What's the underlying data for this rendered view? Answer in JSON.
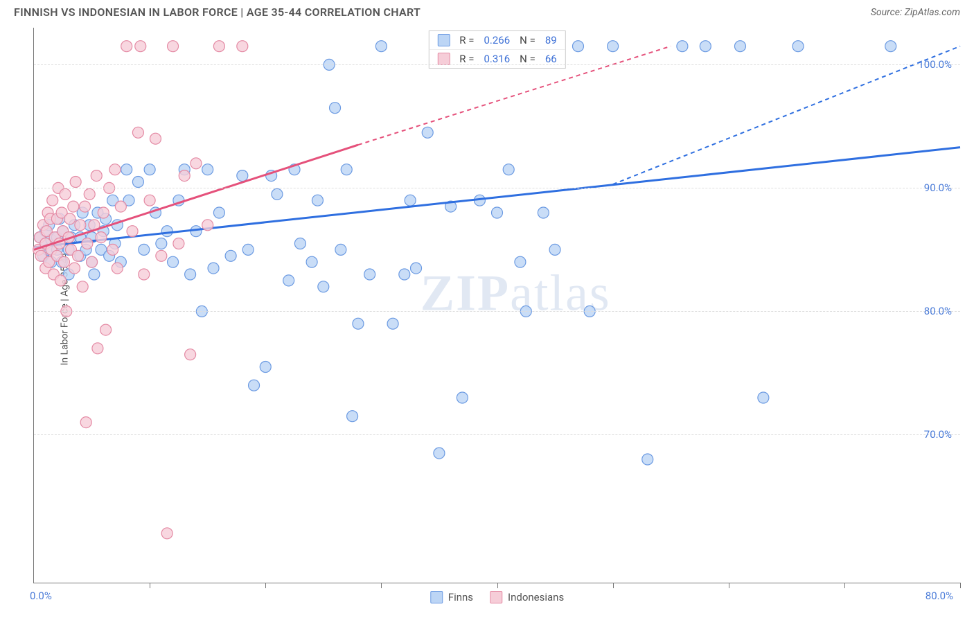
{
  "title": "FINNISH VS INDONESIAN IN LABOR FORCE | AGE 35-44 CORRELATION CHART",
  "source": "Source: ZipAtlas.com",
  "ylabel": "In Labor Force | Age 35-44",
  "watermark_a": "ZIP",
  "watermark_b": "atlas",
  "chart": {
    "type": "scatter",
    "background_color": "#ffffff",
    "grid_color": "#dddddd",
    "axis_color": "#777777",
    "tick_label_color": "#4a7bd8",
    "xlim": [
      0,
      80
    ],
    "ylim": [
      58,
      103
    ],
    "xtick_positions": [
      10,
      20,
      30,
      40,
      50,
      60,
      70,
      80
    ],
    "ytick_positions": [
      70,
      80,
      90,
      100
    ],
    "ytick_labels": [
      "70.0%",
      "80.0%",
      "90.0%",
      "100.0%"
    ],
    "x_origin_label": "0.0%",
    "x_max_label": "80.0%",
    "marker_radius": 8,
    "marker_stroke_width": 1.2,
    "trend_line_width": 3,
    "trend_dash": "6,5",
    "series": [
      {
        "name": "Finns",
        "fill": "#bcd5f5",
        "stroke": "#6b9ae2",
        "trend_color": "#2f6fe0",
        "R": "0.266",
        "N": "89",
        "trend_solid": {
          "x1": 0,
          "y1": 85.2,
          "x2": 80,
          "y2": 93.3
        },
        "trend_dash": {
          "x1": 50,
          "y1": 90.3,
          "x2": 80,
          "y2": 101.5
        },
        "points": [
          [
            0.5,
            86
          ],
          [
            0.8,
            84.5
          ],
          [
            1,
            85.5
          ],
          [
            1,
            86.5
          ],
          [
            1.2,
            85
          ],
          [
            1.3,
            87
          ],
          [
            1.5,
            85.8
          ],
          [
            1.5,
            84
          ],
          [
            2,
            85
          ],
          [
            2,
            86
          ],
          [
            2.2,
            87.5
          ],
          [
            2.4,
            84
          ],
          [
            2.5,
            86.5
          ],
          [
            3,
            83
          ],
          [
            3,
            85
          ],
          [
            3.2,
            86
          ],
          [
            3.5,
            87
          ],
          [
            4,
            84.5
          ],
          [
            4,
            86
          ],
          [
            4.2,
            88
          ],
          [
            4.5,
            85
          ],
          [
            4.8,
            87
          ],
          [
            5,
            84
          ],
          [
            5,
            86
          ],
          [
            5.2,
            83
          ],
          [
            5.5,
            88
          ],
          [
            5.8,
            85
          ],
          [
            6,
            86.5
          ],
          [
            6.2,
            87.5
          ],
          [
            6.5,
            84.5
          ],
          [
            6.8,
            89
          ],
          [
            7,
            85.5
          ],
          [
            7.2,
            87
          ],
          [
            7.5,
            84
          ],
          [
            8,
            91.5
          ],
          [
            8.2,
            89
          ],
          [
            9,
            90.5
          ],
          [
            9.5,
            85
          ],
          [
            10,
            91.5
          ],
          [
            10.5,
            88
          ],
          [
            11,
            85.5
          ],
          [
            11.5,
            86.5
          ],
          [
            12,
            84
          ],
          [
            12.5,
            89
          ],
          [
            13,
            91.5
          ],
          [
            13.5,
            83
          ],
          [
            14,
            86.5
          ],
          [
            14.5,
            80
          ],
          [
            15,
            91.5
          ],
          [
            15.5,
            83.5
          ],
          [
            16,
            88
          ],
          [
            17,
            84.5
          ],
          [
            18,
            91
          ],
          [
            18.5,
            85
          ],
          [
            19,
            74
          ],
          [
            20,
            75.5
          ],
          [
            20.5,
            91
          ],
          [
            21,
            89.5
          ],
          [
            22,
            82.5
          ],
          [
            22.5,
            91.5
          ],
          [
            23,
            85.5
          ],
          [
            24,
            84
          ],
          [
            24.5,
            89
          ],
          [
            25,
            82
          ],
          [
            25.5,
            100
          ],
          [
            26,
            96.5
          ],
          [
            26.5,
            85
          ],
          [
            27,
            91.5
          ],
          [
            27.5,
            71.5
          ],
          [
            28,
            79
          ],
          [
            29,
            83
          ],
          [
            30,
            101.5
          ],
          [
            31,
            79
          ],
          [
            32,
            83
          ],
          [
            32.5,
            89
          ],
          [
            33,
            83.5
          ],
          [
            34,
            94.5
          ],
          [
            35,
            68.5
          ],
          [
            36,
            88.5
          ],
          [
            37,
            73
          ],
          [
            38,
            101.5
          ],
          [
            38.5,
            89
          ],
          [
            40,
            88
          ],
          [
            41,
            91.5
          ],
          [
            42,
            84
          ],
          [
            42.5,
            80
          ],
          [
            43,
            101.5
          ],
          [
            44,
            88
          ],
          [
            45,
            85
          ],
          [
            47,
            101.5
          ],
          [
            48,
            80
          ],
          [
            50,
            101.5
          ],
          [
            53,
            68
          ],
          [
            56,
            101.5
          ],
          [
            58,
            101.5
          ],
          [
            61,
            101.5
          ],
          [
            63,
            73
          ],
          [
            66,
            101.5
          ],
          [
            74,
            101.5
          ]
        ]
      },
      {
        "name": "Indonesians",
        "fill": "#f6cdd8",
        "stroke": "#e48aa4",
        "trend_color": "#e5517b",
        "R": "0.316",
        "N": "66",
        "trend_solid": {
          "x1": 0,
          "y1": 85.0,
          "x2": 28,
          "y2": 93.5
        },
        "trend_dash": {
          "x1": 28,
          "y2": 101.5,
          "x2": 55,
          "y1": 93.5
        },
        "points": [
          [
            0.4,
            85
          ],
          [
            0.5,
            86
          ],
          [
            0.6,
            84.5
          ],
          [
            0.8,
            87
          ],
          [
            1,
            85.5
          ],
          [
            1,
            83.5
          ],
          [
            1.1,
            86.5
          ],
          [
            1.2,
            88
          ],
          [
            1.3,
            84
          ],
          [
            1.4,
            87.5
          ],
          [
            1.5,
            85
          ],
          [
            1.6,
            89
          ],
          [
            1.7,
            83
          ],
          [
            1.8,
            86
          ],
          [
            2,
            87.5
          ],
          [
            2,
            84.5
          ],
          [
            2.1,
            90
          ],
          [
            2.2,
            85.5
          ],
          [
            2.3,
            82.5
          ],
          [
            2.4,
            88
          ],
          [
            2.5,
            86.5
          ],
          [
            2.6,
            84
          ],
          [
            2.7,
            89.5
          ],
          [
            2.8,
            80
          ],
          [
            3,
            86
          ],
          [
            3.1,
            87.5
          ],
          [
            3.2,
            85
          ],
          [
            3.4,
            88.5
          ],
          [
            3.5,
            83.5
          ],
          [
            3.6,
            90.5
          ],
          [
            3.8,
            84.5
          ],
          [
            4,
            87
          ],
          [
            4.2,
            82
          ],
          [
            4.4,
            88.5
          ],
          [
            4.6,
            85.5
          ],
          [
            4.8,
            89.5
          ],
          [
            5,
            84
          ],
          [
            5.2,
            87
          ],
          [
            5.4,
            91
          ],
          [
            5.5,
            77
          ],
          [
            5.8,
            86
          ],
          [
            6,
            88
          ],
          [
            6.2,
            78.5
          ],
          [
            6.5,
            90
          ],
          [
            6.8,
            85
          ],
          [
            7,
            91.5
          ],
          [
            7.2,
            83.5
          ],
          [
            7.5,
            88.5
          ],
          [
            8,
            101.5
          ],
          [
            8.5,
            86.5
          ],
          [
            9,
            94.5
          ],
          [
            9.2,
            101.5
          ],
          [
            9.5,
            83
          ],
          [
            10,
            89
          ],
          [
            10.5,
            94
          ],
          [
            11,
            84.5
          ],
          [
            12,
            101.5
          ],
          [
            12.5,
            85.5
          ],
          [
            13,
            91
          ],
          [
            13.5,
            76.5
          ],
          [
            14,
            92
          ],
          [
            15,
            87
          ],
          [
            16,
            101.5
          ],
          [
            18,
            101.5
          ],
          [
            11.5,
            62
          ],
          [
            4.5,
            71
          ]
        ]
      }
    ]
  },
  "legend": {
    "finns_label": "Finns",
    "indonesians_label": "Indonesians"
  },
  "stats": {
    "r_label": "R =",
    "n_label": "N ="
  }
}
